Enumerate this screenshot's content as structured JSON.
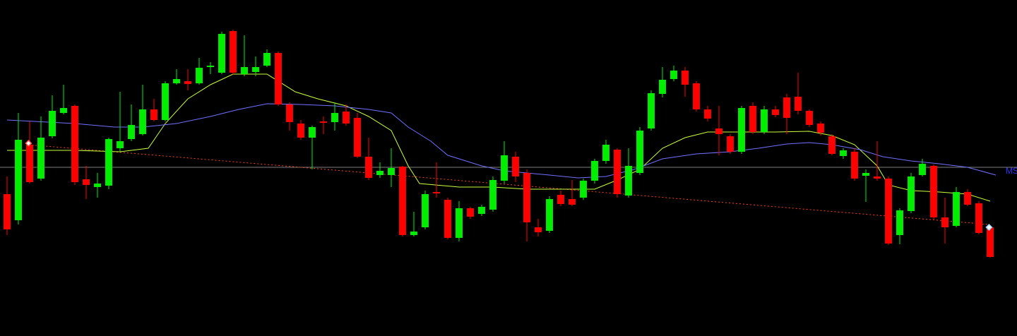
{
  "chart_data": {
    "type": "candlestick",
    "xlim": [
      -0.625,
      89.375
    ],
    "ylim": [
      0,
      476
    ],
    "up_color": "#00ee00",
    "down_color": "#ff0000",
    "open": [
      201,
      164,
      271,
      223,
      283,
      316,
      326,
      222,
      211,
      213,
      266,
      279,
      286,
      321,
      306,
      358,
      361,
      358,
      381,
      373,
      432,
      371,
      374,
      383,
      401,
      328,
      301,
      281,
      304,
      303,
      318,
      309,
      254,
      228,
      228,
      240,
      143,
      154,
      204,
      193,
      139,
      181,
      173,
      179,
      220,
      254,
      231,
      154,
      149,
      200,
      194,
      196,
      220,
      248,
      264,
      199,
      231,
      294,
      343,
      364,
      376,
      358,
      321,
      294,
      283,
      261,
      326,
      289,
      321,
      338,
      339,
      319,
      301,
      283,
      255,
      261,
      227,
      226,
      223,
      143,
      177,
      228,
      241,
      168,
      156,
      204,
      188,
      154
    ],
    "high": [
      226,
      316,
      304,
      311,
      341,
      356,
      328,
      241,
      231,
      281,
      346,
      328,
      356,
      336,
      361,
      378,
      378,
      394,
      388,
      431,
      434,
      426,
      396,
      406,
      403,
      331,
      306,
      298,
      311,
      331,
      328,
      316,
      281,
      246,
      266,
      241,
      176,
      206,
      246,
      196,
      191,
      183,
      186,
      226,
      276,
      261,
      236,
      166,
      198,
      206,
      221,
      223,
      251,
      278,
      266,
      266,
      296,
      348,
      381,
      383,
      381,
      361,
      326,
      326,
      286,
      326,
      331,
      326,
      326,
      343,
      373,
      321,
      304,
      286,
      266,
      266,
      236,
      276,
      226,
      181,
      231,
      251,
      243,
      196,
      211,
      208,
      191,
      156
    ],
    "low": [
      143,
      158,
      216,
      220,
      280,
      314,
      214,
      194,
      196,
      208,
      261,
      276,
      284,
      304,
      304,
      356,
      348,
      356,
      371,
      371,
      370,
      368,
      368,
      381,
      326,
      291,
      278,
      236,
      286,
      291,
      298,
      252,
      221,
      224,
      211,
      141,
      141,
      151,
      196,
      137,
      134,
      166,
      170,
      176,
      216,
      218,
      134,
      141,
      146,
      184,
      184,
      193,
      216,
      244,
      196,
      196,
      228,
      291,
      338,
      361,
      339,
      318,
      304,
      256,
      258,
      258,
      286,
      286,
      310,
      286,
      314,
      296,
      284,
      256,
      251,
      220,
      190,
      220,
      129,
      130,
      174,
      226,
      164,
      131,
      154,
      184,
      144,
      111
    ],
    "close": [
      151,
      278,
      218,
      281,
      319,
      323,
      218,
      214,
      216,
      279,
      276,
      299,
      321,
      306,
      358,
      364,
      357,
      380,
      383,
      428,
      373,
      381,
      381,
      401,
      328,
      303,
      281,
      296,
      302,
      316,
      301,
      254,
      224,
      234,
      238,
      143,
      148,
      201,
      202,
      139,
      181,
      169,
      183,
      221,
      256,
      226,
      161,
      147,
      194,
      187,
      186,
      220,
      248,
      271,
      201,
      241,
      291,
      344,
      363,
      376,
      356,
      321,
      308,
      286,
      261,
      323,
      289,
      321,
      313,
      309,
      319,
      299,
      288,
      258,
      263,
      223,
      231,
      223,
      131,
      178,
      226,
      244,
      168,
      154,
      204,
      186,
      146,
      112
    ],
    "overlays": [
      {
        "color": "#c8ff3c",
        "x": [
          0,
          6,
          10,
          12.5,
          14,
          16,
          18,
          20,
          23,
          25.5,
          27.5,
          30,
          32,
          34,
          35.5,
          36.5,
          40,
          43,
          46,
          49,
          52,
          54,
          56,
          58,
          60,
          62,
          65,
          68,
          71,
          73,
          75,
          77,
          78,
          80,
          82.5,
          85,
          87
        ],
        "values": [
          263,
          263,
          261,
          266,
          301,
          336,
          356,
          371,
          371,
          346,
          336,
          326,
          311,
          291,
          241,
          216,
          211,
          211,
          208,
          208,
          208,
          221,
          236,
          266,
          281,
          289,
          289,
          289,
          290,
          284,
          271,
          241,
          214,
          206,
          204,
          201,
          191
        ]
      },
      {
        "color": "#7070ff",
        "x": [
          0,
          6,
          9.5,
          12,
          15,
          18,
          20.5,
          23,
          26,
          29,
          32,
          34,
          35.5,
          37.5,
          39,
          42,
          44,
          48,
          50.5,
          53,
          55.5,
          58,
          61,
          64,
          66.5,
          69,
          71,
          73,
          75.5,
          77.5,
          80,
          82.5,
          85,
          87.5
        ],
        "values": [
          306,
          301,
          296,
          296,
          301,
          311,
          321,
          329,
          328,
          326,
          321,
          316,
          296,
          276,
          256,
          241,
          234,
          228,
          224,
          226,
          236,
          251,
          258,
          261,
          266,
          272,
          274,
          271,
          264,
          254,
          248,
          244,
          239,
          228
        ]
      }
    ],
    "trendline": {
      "color": "#ff4020",
      "x": [
        1.9,
        86.9
      ],
      "values": [
        271,
        158
      ]
    },
    "hlines": [
      {
        "value": 239,
        "color": "#808080"
      }
    ],
    "markers": [
      {
        "x": 1.9,
        "value": 273,
        "color": "#ff5050"
      },
      {
        "x": 86.9,
        "value": 154,
        "color": "#a0d8ff"
      }
    ],
    "annotation": "MS"
  }
}
